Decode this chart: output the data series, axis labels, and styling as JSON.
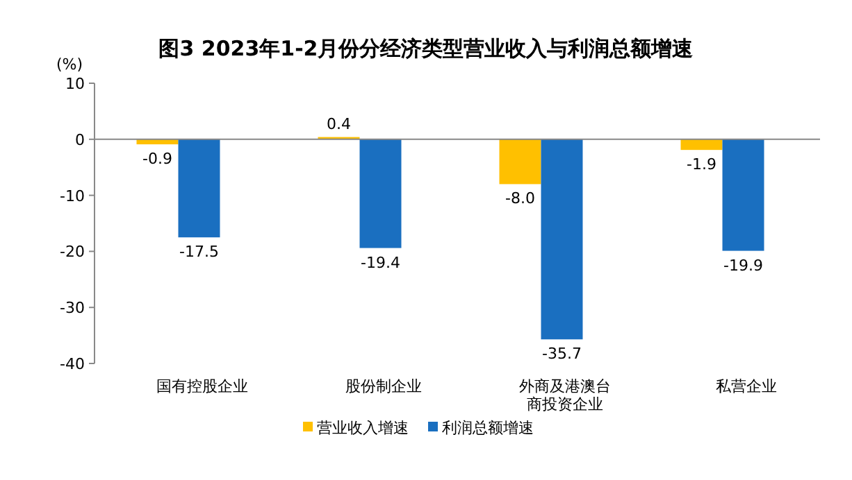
{
  "chart_data": {
    "type": "bar",
    "title": "图3 2023年1-2月份分经济类型营业收入与利润总额增速",
    "ylabel": "(%)",
    "categories": [
      "国有控股企业",
      "股份制企业",
      "外商及港澳台商投资企业",
      "私营企业"
    ],
    "series": [
      {
        "name": "营业收入增速",
        "color": "#ffc000",
        "values": [
          -0.9,
          0.4,
          -8.0,
          -1.9
        ],
        "value_labels": [
          "-0.9",
          "0.4",
          "-8.0",
          "-1.9"
        ]
      },
      {
        "name": "利润总额增速",
        "color": "#1a6fc0",
        "values": [
          -17.5,
          -19.4,
          -35.7,
          -19.9
        ],
        "value_labels": [
          "-17.5",
          "-19.4",
          "-35.7",
          "-19.9"
        ]
      }
    ],
    "ylim": [
      -40,
      10
    ],
    "yticks": [
      -40,
      -30,
      -20,
      -10,
      0,
      10
    ],
    "legend": "bottom"
  }
}
